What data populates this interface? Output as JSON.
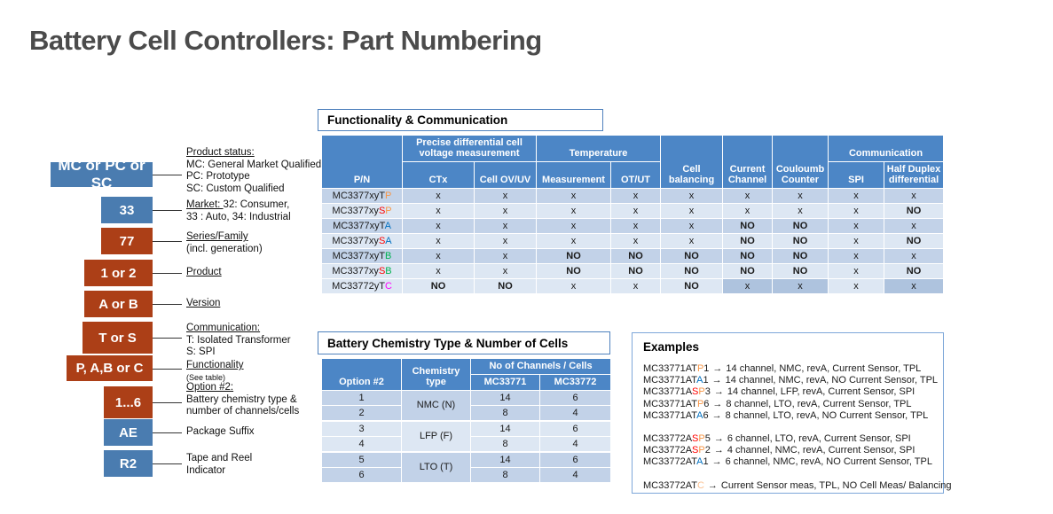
{
  "page_title": "Battery Cell Controllers: Part Numbering",
  "colors": {
    "box_blue": "#4a7cb0",
    "box_red": "#ac3f17",
    "header_blue": "#4c86c6",
    "row_dark": "#c2d2e8",
    "row_light": "#dde7f3",
    "cell_darker": "#aec3de",
    "orange": "#f79646",
    "red": "#ff0000",
    "blue": "#0070c0",
    "green": "#00b050",
    "magenta": "#ff00ff",
    "pale_orange": "#fac090"
  },
  "part_stack": {
    "items": [
      {
        "label": "MC or PC or SC",
        "color": "blue",
        "desc": [
          [
            {
              "t": "Product status:",
              "u": true
            }
          ],
          [
            {
              "t": "MC: General Market Qualified,"
            }
          ],
          [
            {
              "t": "PC: Prototype"
            }
          ],
          [
            {
              "t": "SC: Custom Qualified"
            }
          ]
        ]
      },
      {
        "label": "33",
        "color": "blue",
        "desc": [
          [
            {
              "t": "Market: ",
              "u": true
            },
            {
              "t": "32: Consumer,"
            }
          ],
          [
            {
              "t": "33 : Auto, 34: Industrial"
            }
          ]
        ]
      },
      {
        "label": "77",
        "color": "red",
        "desc": [
          [
            {
              "t": "Series/Family",
              "u": true
            }
          ],
          [
            {
              "t": "(incl. generation)"
            }
          ]
        ]
      },
      {
        "label": "1 or 2",
        "color": "red",
        "desc": [
          [
            {
              "t": "Product",
              "u": true
            }
          ]
        ]
      },
      {
        "label": "A or B",
        "color": "red",
        "desc": [
          [
            {
              "t": "Version",
              "u": true
            }
          ]
        ]
      },
      {
        "label": "T or S",
        "color": "red",
        "desc": [
          [
            {
              "t": "Communication:",
              "u": true
            }
          ],
          [
            {
              "t": "T: Isolated Transformer"
            }
          ],
          [
            {
              "t": "S: SPI"
            }
          ]
        ]
      },
      {
        "label": "P, A,B or C",
        "color": "red",
        "desc": [
          [
            {
              "t": "Functionality",
              "u": true
            }
          ],
          [
            {
              "t": "(See table)",
              "small": true
            }
          ]
        ]
      },
      {
        "label": "1...6",
        "color": "red",
        "desc": [
          [
            {
              "t": "Option #2:",
              "u": true
            }
          ],
          [
            {
              "t": "Battery chemistry type &"
            }
          ],
          [
            {
              "t": "number of channels/cells"
            }
          ]
        ]
      },
      {
        "label": "AE",
        "color": "blue",
        "desc": [
          [
            {
              "t": "Package Suffix"
            }
          ]
        ]
      },
      {
        "label": "R2",
        "color": "blue",
        "desc": [
          [
            {
              "t": "Tape and Reel"
            }
          ],
          [
            {
              "t": "Indicator"
            }
          ]
        ]
      }
    ]
  },
  "func_table": {
    "title": "Functionality & Communication",
    "header": {
      "pn": "P/N",
      "groups": [
        {
          "label": "Precise differential cell voltage measurement",
          "cols": [
            "CTx",
            "Cell OV/UV"
          ]
        },
        {
          "label": "Temperature",
          "cols": [
            "Measurement",
            "OT/UT"
          ]
        },
        {
          "label": "Cell balancing"
        },
        {
          "label": "Current Channel"
        },
        {
          "label": "Couloumb Counter"
        },
        {
          "label": "Communication",
          "cols": [
            "SPI",
            "Half Duplex differential"
          ]
        }
      ]
    },
    "rows": [
      {
        "shade": "dark",
        "pn": [
          {
            "t": "MC3377xyT"
          },
          {
            "t": "P",
            "c": "orange"
          }
        ],
        "cells": [
          {
            "v": "x"
          },
          {
            "v": "x"
          },
          {
            "v": "x"
          },
          {
            "v": "x"
          },
          {
            "v": "x"
          },
          {
            "v": "x"
          },
          {
            "v": "x"
          },
          {
            "v": "x"
          },
          {
            "v": "x"
          }
        ]
      },
      {
        "shade": "light",
        "pn": [
          {
            "t": "MC3377xy"
          },
          {
            "t": "S",
            "c": "red"
          },
          {
            "t": "P",
            "c": "orange"
          }
        ],
        "cells": [
          {
            "v": "x"
          },
          {
            "v": "x"
          },
          {
            "v": "x"
          },
          {
            "v": "x"
          },
          {
            "v": "x"
          },
          {
            "v": "x"
          },
          {
            "v": "x"
          },
          {
            "v": "x"
          },
          {
            "v": "NO",
            "c": "red"
          }
        ]
      },
      {
        "shade": "dark",
        "pn": [
          {
            "t": "MC3377xyT"
          },
          {
            "t": "A",
            "c": "blue"
          }
        ],
        "cells": [
          {
            "v": "x"
          },
          {
            "v": "x"
          },
          {
            "v": "x"
          },
          {
            "v": "x"
          },
          {
            "v": "x"
          },
          {
            "v": "NO",
            "c": "blue"
          },
          {
            "v": "NO",
            "c": "blue"
          },
          {
            "v": "x"
          },
          {
            "v": "x"
          }
        ]
      },
      {
        "shade": "light",
        "pn": [
          {
            "t": "MC3377xy"
          },
          {
            "t": "S",
            "c": "red"
          },
          {
            "t": "A",
            "c": "blue"
          }
        ],
        "cells": [
          {
            "v": "x"
          },
          {
            "v": "x"
          },
          {
            "v": "x"
          },
          {
            "v": "x"
          },
          {
            "v": "x"
          },
          {
            "v": "NO",
            "c": "blue"
          },
          {
            "v": "NO",
            "c": "blue"
          },
          {
            "v": "x"
          },
          {
            "v": "NO",
            "c": "red"
          }
        ]
      },
      {
        "shade": "dark",
        "pn": [
          {
            "t": "MC3377xyT"
          },
          {
            "t": "B",
            "c": "green"
          }
        ],
        "cells": [
          {
            "v": "x"
          },
          {
            "v": "x"
          },
          {
            "v": "NO",
            "c": "green"
          },
          {
            "v": "NO",
            "c": "green"
          },
          {
            "v": "NO",
            "c": "green"
          },
          {
            "v": "NO",
            "c": "green"
          },
          {
            "v": "NO",
            "c": "green"
          },
          {
            "v": "x"
          },
          {
            "v": "x"
          }
        ]
      },
      {
        "shade": "light",
        "pn": [
          {
            "t": "MC3377xy"
          },
          {
            "t": "S",
            "c": "red"
          },
          {
            "t": "B",
            "c": "green"
          }
        ],
        "cells": [
          {
            "v": "x"
          },
          {
            "v": "x"
          },
          {
            "v": "NO",
            "c": "green"
          },
          {
            "v": "NO",
            "c": "green"
          },
          {
            "v": "NO",
            "c": "green"
          },
          {
            "v": "NO",
            "c": "green"
          },
          {
            "v": "NO",
            "c": "green"
          },
          {
            "v": "x"
          },
          {
            "v": "NO",
            "c": "red"
          }
        ]
      },
      {
        "shade": "light",
        "pn": [
          {
            "t": "MC33772yT"
          },
          {
            "t": "C",
            "c": "magenta"
          }
        ],
        "cells": [
          {
            "v": "NO",
            "c": "magenta"
          },
          {
            "v": "NO",
            "c": "magenta"
          },
          {
            "v": "x"
          },
          {
            "v": "x"
          },
          {
            "v": "NO",
            "c": "magenta"
          },
          {
            "v": "x",
            "darker": true
          },
          {
            "v": "x",
            "darker": true
          },
          {
            "v": "x"
          },
          {
            "v": "x",
            "darker": true
          }
        ]
      }
    ]
  },
  "chem_table": {
    "title": "Battery Chemistry Type & Number of Cells",
    "header": {
      "option": "Option #2",
      "chem": "Chemistry type",
      "group": "No of Channels / Cells",
      "cols": [
        "MC33771",
        "MC33772"
      ]
    },
    "groups": [
      {
        "chem": "NMC (N)",
        "shade": "dark",
        "rows": [
          {
            "option": "1",
            "mc33771": "14",
            "mc33772": "6"
          },
          {
            "option": "2",
            "mc33771": "8",
            "mc33772": "4"
          }
        ]
      },
      {
        "chem": "LFP (F)",
        "shade": "light",
        "rows": [
          {
            "option": "3",
            "mc33771": "14",
            "mc33772": "6"
          },
          {
            "option": "4",
            "mc33771": "8",
            "mc33772": "4"
          }
        ]
      },
      {
        "chem": "LTO (T)",
        "shade": "dark",
        "rows": [
          {
            "option": "5",
            "mc33771": "14",
            "mc33772": "6"
          },
          {
            "option": "6",
            "mc33771": "8",
            "mc33772": "4"
          }
        ]
      }
    ]
  },
  "examples": {
    "title": "Examples",
    "arrow": "→",
    "lines": [
      {
        "pn": [
          {
            "t": "MC33771AT"
          },
          {
            "t": "P",
            "c": "orange"
          },
          {
            "t": "1"
          }
        ],
        "desc": "14 channel, NMC, revA, Current Sensor, TPL"
      },
      {
        "pn": [
          {
            "t": "MC33771AT"
          },
          {
            "t": "A",
            "c": "blue"
          },
          {
            "t": "1"
          }
        ],
        "desc": "14 channel, NMC, revA, NO Current Sensor, TPL"
      },
      {
        "pn": [
          {
            "t": "MC33771A"
          },
          {
            "t": "S",
            "c": "red"
          },
          {
            "t": "P",
            "c": "orange"
          },
          {
            "t": "3"
          }
        ],
        "desc": "14 channel, LFP, revA, Current Sensor, SPI"
      },
      {
        "pn": [
          {
            "t": "MC33771AT"
          },
          {
            "t": "P",
            "c": "orange"
          },
          {
            "t": "6"
          }
        ],
        "desc": "8 channel, LTO, revA, Current Sensor, TPL"
      },
      {
        "pn": [
          {
            "t": "MC33771AT"
          },
          {
            "t": "A",
            "c": "blue"
          },
          {
            "t": "6"
          }
        ],
        "desc": "8 channel, LTO, revA, NO Current Sensor, TPL"
      },
      {
        "gap": true
      },
      {
        "pn": [
          {
            "t": "MC33772A"
          },
          {
            "t": "S",
            "c": "red"
          },
          {
            "t": "P",
            "c": "orange"
          },
          {
            "t": "5"
          }
        ],
        "desc": "6 channel, LTO, revA, Current Sensor, SPI"
      },
      {
        "pn": [
          {
            "t": "MC33772A"
          },
          {
            "t": "S",
            "c": "red"
          },
          {
            "t": "P",
            "c": "orange"
          },
          {
            "t": "2"
          }
        ],
        "desc": "4 channel, NMC, revA, Current Sensor, SPI"
      },
      {
        "pn": [
          {
            "t": "MC33772AT"
          },
          {
            "t": "A",
            "c": "blue"
          },
          {
            "t": "1"
          }
        ],
        "desc": "6 channel, NMC, revA, NO Current Sensor, TPL"
      },
      {
        "gap": true
      },
      {
        "pn": [
          {
            "t": "MC33772AT"
          },
          {
            "t": "C",
            "c": "paleorange"
          }
        ],
        "desc": "Current Sensor meas, TPL, NO Cell Meas/ Balancing"
      }
    ]
  }
}
